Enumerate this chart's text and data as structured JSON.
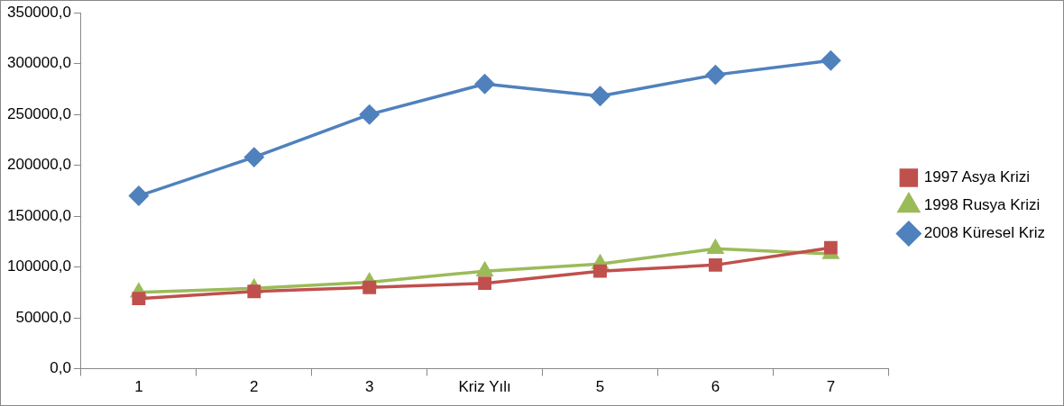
{
  "chart_data": {
    "type": "line",
    "categories": [
      "1",
      "2",
      "3",
      "Kriz Yılı",
      "5",
      "6",
      "7"
    ],
    "series": [
      {
        "name": "1997 Asya Krizi",
        "color": "#c0504d",
        "marker": "square",
        "values": [
          69000,
          76000,
          80000,
          84000,
          96000,
          102000,
          119000
        ]
      },
      {
        "name": "1998 Rusya Krizi",
        "color": "#9bbb59",
        "marker": "triangle",
        "values": [
          75000,
          79000,
          85000,
          96000,
          103000,
          118000,
          113000
        ]
      },
      {
        "name": "2008 Küresel Kriz",
        "color": "#4f81bd",
        "marker": "diamond",
        "values": [
          170000,
          208000,
          250000,
          280000,
          268000,
          289000,
          303000
        ]
      }
    ],
    "ylim": [
      0,
      350000
    ],
    "yticks": [
      {
        "value": 0,
        "label": "0,0"
      },
      {
        "value": 50000,
        "label": "50000,0"
      },
      {
        "value": 100000,
        "label": "100000,0"
      },
      {
        "value": 150000,
        "label": "150000,0"
      },
      {
        "value": 200000,
        "label": "200000,0"
      },
      {
        "value": 250000,
        "label": "250000,0"
      },
      {
        "value": 300000,
        "label": "300000,0"
      },
      {
        "value": 350000,
        "label": "350000,0"
      }
    ],
    "grid": false,
    "legend": "right",
    "line_style": "solid"
  }
}
